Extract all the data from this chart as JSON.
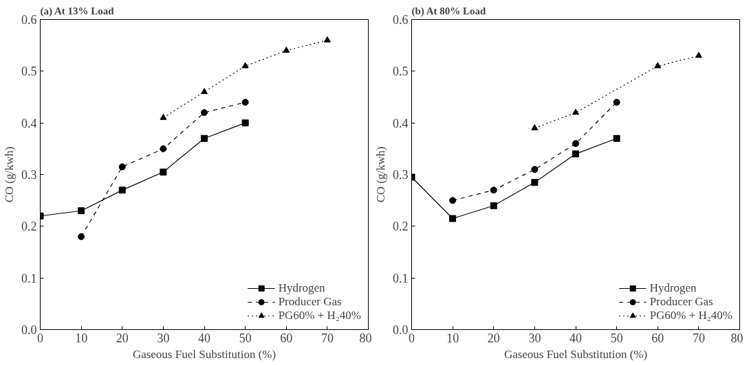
{
  "chart_data": [
    {
      "type": "line",
      "title": "(a)  At 13% Load",
      "xlabel": "Gaseous Fuel Substitution (%)",
      "ylabel": "CO (g/kwh)",
      "xlim": [
        0,
        80
      ],
      "ylim": [
        0,
        0.6
      ],
      "xticks": [
        0,
        10,
        20,
        30,
        40,
        50,
        60,
        70,
        80
      ],
      "yticks": [
        {
          "value": 0,
          "label": "0.0"
        },
        {
          "value": 0.1,
          "label": "0.1"
        },
        {
          "value": 0.2,
          "label": "0.2"
        },
        {
          "value": 0.3,
          "label": "0.3"
        },
        {
          "value": 0.4,
          "label": "0.4"
        },
        {
          "value": 0.5,
          "label": "0.5"
        },
        {
          "value": 0.6,
          "label": "0.6"
        }
      ],
      "grid": false,
      "legend": "bottom right",
      "series": [
        {
          "name": "Hydrogen",
          "color": "#000000",
          "marker": "square",
          "line_style": "solid",
          "x": [
            0,
            10,
            20,
            30,
            40,
            50
          ],
          "values": [
            0.22,
            0.23,
            0.27,
            0.305,
            0.37,
            0.4
          ]
        },
        {
          "name": "Producer Gas",
          "color": "#000000",
          "marker": "circle",
          "line_style": "dashed",
          "x": [
            10,
            20,
            30,
            40,
            50
          ],
          "values": [
            0.18,
            0.315,
            0.35,
            0.42,
            0.44
          ]
        },
        {
          "name": "PG60% + H₂40%",
          "color": "#000000",
          "marker": "triangle",
          "line_style": "dotted",
          "x": [
            30,
            40,
            50,
            60,
            70
          ],
          "values": [
            0.41,
            0.46,
            0.51,
            0.54,
            0.56
          ]
        }
      ]
    },
    {
      "type": "line",
      "title": "(b)  At 80% Load",
      "xlabel": "Gaseous Fuel Substitution (%)",
      "ylabel": "CO (g/kwh)",
      "xlim": [
        0,
        80
      ],
      "ylim": [
        0,
        0.6
      ],
      "xticks": [
        0,
        10,
        20,
        30,
        40,
        50,
        60,
        70,
        80
      ],
      "yticks": [
        {
          "value": 0,
          "label": "0.0"
        },
        {
          "value": 0.1,
          "label": "0.1"
        },
        {
          "value": 0.2,
          "label": "0.2"
        },
        {
          "value": 0.3,
          "label": "0.3"
        },
        {
          "value": 0.4,
          "label": "0.4"
        },
        {
          "value": 0.5,
          "label": "0.5"
        },
        {
          "value": 0.6,
          "label": "0.6"
        }
      ],
      "grid": false,
      "legend": "bottom right",
      "series": [
        {
          "name": "Hydrogen",
          "color": "#000000",
          "marker": "square",
          "line_style": "solid",
          "x": [
            0,
            10,
            20,
            30,
            40,
            50
          ],
          "values": [
            0.295,
            0.215,
            0.24,
            0.285,
            0.34,
            0.37
          ]
        },
        {
          "name": "Producer Gas",
          "color": "#000000",
          "marker": "circle",
          "line_style": "dashed",
          "x": [
            10,
            20,
            30,
            40,
            50
          ],
          "values": [
            0.25,
            0.27,
            0.31,
            0.36,
            0.44
          ]
        },
        {
          "name": "PG60% + H₂40%",
          "color": "#000000",
          "marker": "triangle",
          "line_style": "dotted",
          "x": [
            30,
            40,
            60,
            70
          ],
          "values": [
            0.39,
            0.42,
            0.51,
            0.53
          ]
        }
      ]
    }
  ]
}
